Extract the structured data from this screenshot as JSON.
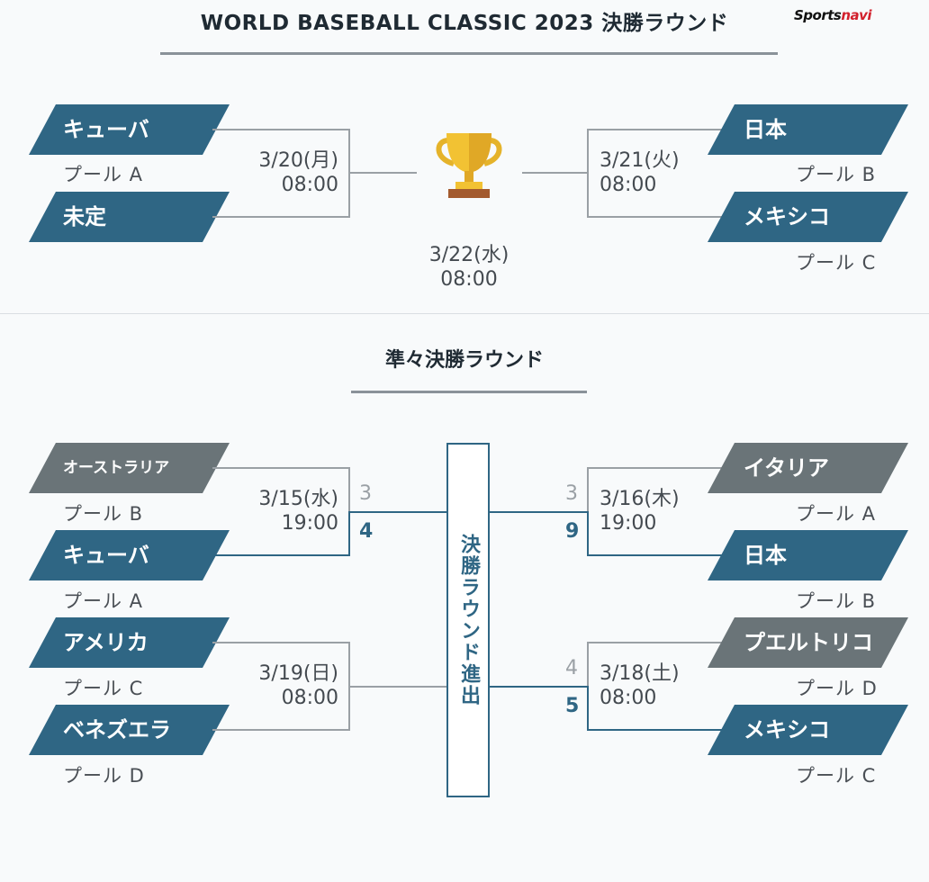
{
  "title": "WORLD BASEBALL CLASSIC 2023 決勝ラウンド",
  "logo": {
    "part1": "Sports",
    "part2": "navi"
  },
  "final_round": {
    "sf1": {
      "team_top": "キューバ",
      "pool_top": "プール A",
      "team_bottom": "未定",
      "date": "3/20(月)",
      "time": "08:00"
    },
    "sf2": {
      "team_top": "日本",
      "pool_top": "プール B",
      "team_bottom": "メキシコ",
      "pool_bottom": "プール C",
      "date": "3/21(火)",
      "time": "08:00"
    },
    "final": {
      "date": "3/22(水)",
      "time": "08:00"
    }
  },
  "quarterfinal_title": "準々決勝ラウンド",
  "advance_label": "決勝ラウンド進出",
  "quarterfinals": {
    "qf1": {
      "team_top": "オーストラリア",
      "pool_top": "プール B",
      "score_top": "3",
      "team_bottom": "キューバ",
      "pool_bottom": "プール A",
      "score_bottom": "4",
      "date": "3/15(水)",
      "time": "19:00"
    },
    "qf2": {
      "team_top": "アメリカ",
      "pool_top": "プール C",
      "team_bottom": "ベネズエラ",
      "pool_bottom": "プール D",
      "date": "3/19(日)",
      "time": "08:00"
    },
    "qf3": {
      "team_top": "イタリア",
      "pool_top": "プール A",
      "score_top": "3",
      "team_bottom": "日本",
      "pool_bottom": "プール B",
      "score_bottom": "9",
      "date": "3/16(木)",
      "time": "19:00"
    },
    "qf4": {
      "team_top": "プエルトリコ",
      "pool_top": "プール D",
      "score_top": "4",
      "team_bottom": "メキシコ",
      "pool_bottom": "プール C",
      "score_bottom": "5",
      "date": "3/18(土)",
      "time": "08:00"
    }
  },
  "colors": {
    "winner": "#2f6684",
    "loser": "#6a7478",
    "line": "#9aa0a5"
  },
  "icons": {
    "trophy": "trophy-icon"
  }
}
